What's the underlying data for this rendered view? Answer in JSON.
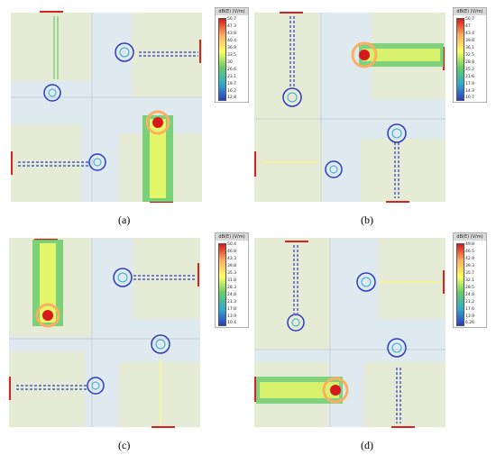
{
  "colors": {
    "field_bg": "#dfe9f0",
    "patch_green": "#e6ebd6",
    "port_red": "#d6231e",
    "gradient": [
      "#d7191c",
      "#fdae61",
      "#ffff66",
      "#66cc66",
      "#33aacc",
      "#2c3cbf"
    ]
  },
  "panels": [
    {
      "caption": "(a)",
      "legend": {
        "title": "dB(E) (V/m)",
        "ticks": [
          "50.7",
          "47.3",
          "43.8",
          "40.4",
          "36.9",
          "33.5",
          "30",
          "26.6",
          "23.1",
          "19.7",
          "16.2",
          "12.8"
        ]
      }
    },
    {
      "caption": "(b)",
      "legend": {
        "title": "dB(E) (V/m)",
        "ticks": [
          "50.7",
          "47",
          "43.4",
          "39.8",
          "36.1",
          "32.5",
          "28.8",
          "25.2",
          "21.6",
          "17.9",
          "14.3",
          "10.7"
        ]
      }
    },
    {
      "caption": "(c)",
      "legend": {
        "title": "dB(E) (V/m)",
        "ticks": [
          "50.4",
          "46.8",
          "43.3",
          "39.8",
          "35.3",
          "31.8",
          "28.3",
          "24.8",
          "21.3",
          "17.8",
          "13.9",
          "10.4"
        ]
      }
    },
    {
      "caption": "(d)",
      "legend": {
        "title": "dB(E) (V/m)",
        "ticks": [
          "49.8",
          "46.5",
          "42.9",
          "39.3",
          "35.7",
          "32.1",
          "28.5",
          "24.8",
          "21.2",
          "17.6",
          "13.9",
          "6.26"
        ]
      }
    }
  ]
}
